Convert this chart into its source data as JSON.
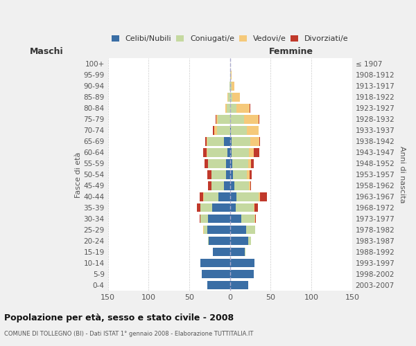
{
  "age_groups": [
    "0-4",
    "5-9",
    "10-14",
    "15-19",
    "20-24",
    "25-29",
    "30-34",
    "35-39",
    "40-44",
    "45-49",
    "50-54",
    "55-59",
    "60-64",
    "65-69",
    "70-74",
    "75-79",
    "80-84",
    "85-89",
    "90-94",
    "95-99",
    "100+"
  ],
  "birth_years": [
    "2003-2007",
    "1998-2002",
    "1993-1997",
    "1988-1992",
    "1983-1987",
    "1978-1982",
    "1973-1977",
    "1968-1972",
    "1963-1967",
    "1958-1962",
    "1953-1957",
    "1948-1952",
    "1943-1947",
    "1938-1942",
    "1933-1937",
    "1928-1932",
    "1923-1927",
    "1918-1922",
    "1913-1917",
    "1908-1912",
    "≤ 1907"
  ],
  "male": {
    "celibi": [
      28,
      35,
      36,
      21,
      26,
      28,
      27,
      22,
      14,
      7,
      5,
      5,
      3,
      7,
      0,
      0,
      0,
      0,
      0,
      0,
      0
    ],
    "coniugati": [
      0,
      0,
      0,
      0,
      1,
      4,
      9,
      14,
      18,
      16,
      18,
      22,
      25,
      21,
      16,
      15,
      4,
      2,
      1,
      0,
      0
    ],
    "vedovi": [
      0,
      0,
      0,
      0,
      0,
      1,
      0,
      0,
      1,
      0,
      0,
      0,
      1,
      1,
      3,
      2,
      2,
      1,
      0,
      0,
      0
    ],
    "divorziati": [
      0,
      0,
      0,
      0,
      0,
      0,
      1,
      5,
      4,
      4,
      5,
      4,
      4,
      1,
      2,
      1,
      0,
      0,
      0,
      0,
      0
    ]
  },
  "female": {
    "nubili": [
      22,
      29,
      30,
      18,
      22,
      20,
      14,
      7,
      8,
      5,
      4,
      3,
      2,
      2,
      1,
      0,
      0,
      0,
      0,
      0,
      0
    ],
    "coniugate": [
      0,
      0,
      0,
      1,
      4,
      11,
      16,
      22,
      27,
      18,
      17,
      19,
      21,
      23,
      20,
      17,
      8,
      3,
      2,
      1,
      0
    ],
    "vedove": [
      0,
      0,
      0,
      0,
      0,
      0,
      1,
      1,
      2,
      2,
      3,
      4,
      6,
      11,
      14,
      18,
      16,
      9,
      3,
      1,
      0
    ],
    "divorziate": [
      0,
      0,
      0,
      0,
      0,
      0,
      1,
      4,
      8,
      1,
      3,
      3,
      7,
      1,
      0,
      1,
      1,
      0,
      0,
      0,
      0
    ]
  },
  "colors": {
    "celibi": "#3a6ea5",
    "coniugati": "#c5d9a0",
    "vedovi": "#f5c97a",
    "divorziati": "#c0392b"
  },
  "xlim": 150,
  "title": "Popolazione per età, sesso e stato civile - 2008",
  "subtitle": "COMUNE DI TOLLEGNO (BI) - Dati ISTAT 1° gennaio 2008 - Elaborazione TUTTITALIA.IT",
  "ylabel_left": "Fasce di età",
  "ylabel_right": "Anni di nascita",
  "xlabel_left": "Maschi",
  "xlabel_right": "Femmine",
  "bg_color": "#f0f0f0",
  "plot_bg": "#ffffff"
}
